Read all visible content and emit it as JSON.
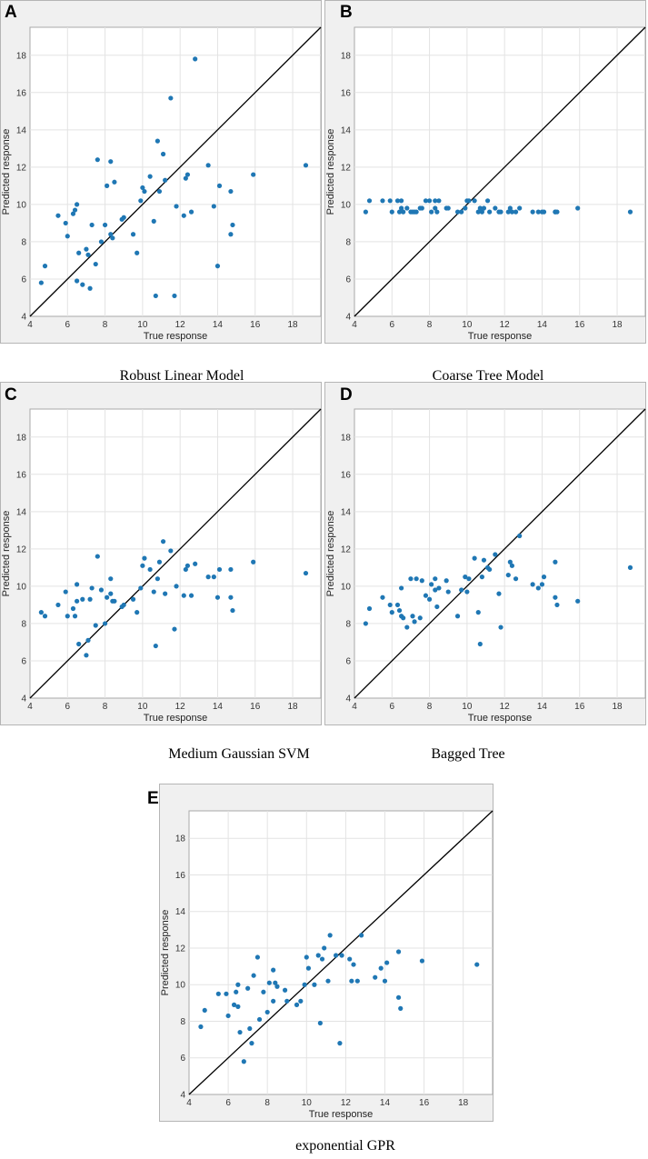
{
  "chart_data": [
    {
      "type": "scatter",
      "panel": "A",
      "caption": "Robust Linear Model",
      "xlabel": "True response",
      "ylabel": "Predicted response",
      "xlim": [
        4,
        19.5
      ],
      "ylim": [
        4,
        19.5
      ],
      "xticks": [
        4,
        6,
        8,
        10,
        12,
        14,
        16,
        18
      ],
      "yticks": [
        4,
        6,
        8,
        10,
        12,
        14,
        16,
        18
      ],
      "grid": true,
      "reference_line": "y = x",
      "points": [
        [
          4.6,
          5.8
        ],
        [
          4.8,
          6.7
        ],
        [
          5.5,
          9.4
        ],
        [
          5.9,
          9.0
        ],
        [
          6.0,
          8.3
        ],
        [
          6.3,
          9.5
        ],
        [
          6.4,
          9.7
        ],
        [
          6.5,
          10.0
        ],
        [
          6.5,
          5.9
        ],
        [
          6.6,
          7.4
        ],
        [
          6.8,
          5.7
        ],
        [
          7.0,
          7.6
        ],
        [
          7.1,
          7.3
        ],
        [
          7.2,
          5.5
        ],
        [
          7.3,
          8.9
        ],
        [
          7.5,
          6.8
        ],
        [
          7.6,
          12.4
        ],
        [
          7.8,
          8.0
        ],
        [
          8.0,
          8.9
        ],
        [
          8.1,
          11.0
        ],
        [
          8.3,
          12.3
        ],
        [
          8.3,
          8.4
        ],
        [
          8.4,
          8.2
        ],
        [
          8.5,
          11.2
        ],
        [
          8.9,
          9.2
        ],
        [
          9.0,
          9.3
        ],
        [
          9.5,
          8.4
        ],
        [
          9.7,
          7.4
        ],
        [
          9.9,
          10.2
        ],
        [
          10.0,
          10.9
        ],
        [
          10.1,
          10.7
        ],
        [
          10.4,
          11.5
        ],
        [
          10.6,
          9.1
        ],
        [
          10.7,
          5.1
        ],
        [
          10.8,
          13.4
        ],
        [
          10.9,
          10.7
        ],
        [
          11.1,
          12.7
        ],
        [
          11.2,
          11.3
        ],
        [
          11.5,
          15.7
        ],
        [
          11.7,
          5.1
        ],
        [
          11.8,
          9.9
        ],
        [
          12.2,
          9.4
        ],
        [
          12.3,
          11.4
        ],
        [
          12.4,
          11.6
        ],
        [
          12.6,
          9.6
        ],
        [
          12.8,
          17.8
        ],
        [
          13.5,
          12.1
        ],
        [
          13.8,
          9.9
        ],
        [
          14.0,
          6.7
        ],
        [
          14.1,
          11.0
        ],
        [
          14.7,
          10.7
        ],
        [
          14.7,
          8.4
        ],
        [
          14.8,
          8.9
        ],
        [
          15.9,
          11.6
        ],
        [
          18.7,
          12.1
        ]
      ]
    },
    {
      "type": "scatter",
      "panel": "B",
      "caption": "Coarse Tree Model",
      "xlabel": "True response",
      "ylabel": "Predicted response",
      "xlim": [
        4,
        19.5
      ],
      "ylim": [
        4,
        19.5
      ],
      "xticks": [
        4,
        6,
        8,
        10,
        12,
        14,
        16,
        18
      ],
      "yticks": [
        4,
        6,
        8,
        10,
        12,
        14,
        16,
        18
      ],
      "grid": true,
      "reference_line": "y = x",
      "points": [
        [
          4.6,
          9.6
        ],
        [
          4.8,
          10.2
        ],
        [
          5.5,
          10.2
        ],
        [
          5.9,
          10.2
        ],
        [
          6.0,
          9.6
        ],
        [
          6.3,
          10.2
        ],
        [
          6.4,
          9.6
        ],
        [
          6.5,
          10.2
        ],
        [
          6.5,
          9.8
        ],
        [
          6.6,
          9.6
        ],
        [
          6.8,
          9.8
        ],
        [
          7.0,
          9.6
        ],
        [
          7.1,
          9.6
        ],
        [
          7.2,
          9.6
        ],
        [
          7.3,
          9.6
        ],
        [
          7.5,
          9.8
        ],
        [
          7.6,
          9.8
        ],
        [
          7.8,
          10.2
        ],
        [
          8.0,
          10.2
        ],
        [
          8.1,
          9.6
        ],
        [
          8.3,
          10.2
        ],
        [
          8.3,
          9.8
        ],
        [
          8.4,
          9.6
        ],
        [
          8.5,
          10.2
        ],
        [
          8.9,
          9.8
        ],
        [
          9.0,
          9.8
        ],
        [
          9.5,
          9.6
        ],
        [
          9.7,
          9.6
        ],
        [
          9.9,
          9.8
        ],
        [
          10.0,
          10.2
        ],
        [
          10.1,
          10.2
        ],
        [
          10.4,
          10.2
        ],
        [
          10.6,
          9.6
        ],
        [
          10.7,
          9.8
        ],
        [
          10.8,
          9.6
        ],
        [
          10.9,
          9.8
        ],
        [
          11.1,
          10.2
        ],
        [
          11.2,
          9.6
        ],
        [
          11.5,
          9.8
        ],
        [
          11.7,
          9.6
        ],
        [
          11.8,
          9.6
        ],
        [
          12.2,
          9.6
        ],
        [
          12.3,
          9.8
        ],
        [
          12.4,
          9.6
        ],
        [
          12.6,
          9.6
        ],
        [
          12.8,
          9.8
        ],
        [
          13.5,
          9.6
        ],
        [
          13.8,
          9.6
        ],
        [
          14.0,
          9.6
        ],
        [
          14.1,
          9.6
        ],
        [
          14.7,
          9.6
        ],
        [
          14.7,
          9.6
        ],
        [
          14.8,
          9.6
        ],
        [
          15.9,
          9.8
        ],
        [
          18.7,
          9.6
        ]
      ]
    },
    {
      "type": "scatter",
      "panel": "C",
      "caption": "Medium Gaussian SVM",
      "xlabel": "True response",
      "ylabel": "Predicted response",
      "xlim": [
        4,
        19.5
      ],
      "ylim": [
        4,
        19.5
      ],
      "xticks": [
        4,
        6,
        8,
        10,
        12,
        14,
        16,
        18
      ],
      "yticks": [
        4,
        6,
        8,
        10,
        12,
        14,
        16,
        18
      ],
      "grid": true,
      "reference_line": "y = x",
      "points": [
        [
          4.6,
          8.6
        ],
        [
          4.8,
          8.4
        ],
        [
          5.5,
          9.0
        ],
        [
          5.9,
          9.7
        ],
        [
          6.0,
          8.4
        ],
        [
          6.3,
          8.8
        ],
        [
          6.4,
          8.4
        ],
        [
          6.5,
          10.1
        ],
        [
          6.5,
          9.2
        ],
        [
          6.6,
          6.9
        ],
        [
          6.8,
          9.3
        ],
        [
          7.0,
          6.3
        ],
        [
          7.1,
          7.1
        ],
        [
          7.2,
          9.3
        ],
        [
          7.3,
          9.9
        ],
        [
          7.5,
          7.9
        ],
        [
          7.6,
          11.6
        ],
        [
          7.8,
          9.8
        ],
        [
          8.0,
          8.0
        ],
        [
          8.1,
          9.4
        ],
        [
          8.3,
          10.4
        ],
        [
          8.3,
          9.6
        ],
        [
          8.4,
          9.2
        ],
        [
          8.5,
          9.2
        ],
        [
          8.9,
          8.9
        ],
        [
          9.0,
          9.0
        ],
        [
          9.5,
          9.3
        ],
        [
          9.7,
          8.6
        ],
        [
          9.9,
          9.9
        ],
        [
          10.0,
          11.1
        ],
        [
          10.1,
          11.5
        ],
        [
          10.4,
          10.9
        ],
        [
          10.6,
          9.7
        ],
        [
          10.7,
          6.8
        ],
        [
          10.8,
          10.4
        ],
        [
          10.9,
          11.3
        ],
        [
          11.1,
          12.4
        ],
        [
          11.2,
          9.6
        ],
        [
          11.5,
          11.9
        ],
        [
          11.7,
          7.7
        ],
        [
          11.8,
          10.0
        ],
        [
          12.2,
          9.5
        ],
        [
          12.3,
          10.9
        ],
        [
          12.4,
          11.1
        ],
        [
          12.6,
          9.5
        ],
        [
          12.8,
          11.2
        ],
        [
          13.5,
          10.5
        ],
        [
          13.8,
          10.5
        ],
        [
          14.0,
          9.4
        ],
        [
          14.1,
          10.9
        ],
        [
          14.7,
          10.9
        ],
        [
          14.7,
          9.4
        ],
        [
          14.8,
          8.7
        ],
        [
          15.9,
          11.3
        ],
        [
          18.7,
          10.7
        ]
      ]
    },
    {
      "type": "scatter",
      "panel": "D",
      "caption": "Bagged Tree",
      "xlabel": "True response",
      "ylabel": "Predicted response",
      "xlim": [
        4,
        19.5
      ],
      "ylim": [
        4,
        19.5
      ],
      "xticks": [
        4,
        6,
        8,
        10,
        12,
        14,
        16,
        18
      ],
      "yticks": [
        4,
        6,
        8,
        10,
        12,
        14,
        16,
        18
      ],
      "grid": true,
      "reference_line": "y = x",
      "points": [
        [
          4.6,
          8.0
        ],
        [
          4.8,
          8.8
        ],
        [
          5.5,
          9.4
        ],
        [
          5.9,
          9.0
        ],
        [
          6.0,
          8.6
        ],
        [
          6.3,
          9.0
        ],
        [
          6.4,
          8.7
        ],
        [
          6.5,
          9.9
        ],
        [
          6.5,
          8.4
        ],
        [
          6.6,
          8.3
        ],
        [
          6.8,
          7.8
        ],
        [
          7.0,
          10.4
        ],
        [
          7.1,
          8.4
        ],
        [
          7.2,
          8.1
        ],
        [
          7.3,
          10.4
        ],
        [
          7.5,
          8.3
        ],
        [
          7.6,
          10.3
        ],
        [
          7.8,
          9.5
        ],
        [
          8.0,
          9.3
        ],
        [
          8.1,
          10.1
        ],
        [
          8.3,
          10.4
        ],
        [
          8.3,
          9.8
        ],
        [
          8.4,
          8.9
        ],
        [
          8.5,
          9.9
        ],
        [
          8.9,
          10.3
        ],
        [
          9.0,
          9.7
        ],
        [
          9.5,
          8.4
        ],
        [
          9.7,
          9.8
        ],
        [
          9.9,
          10.5
        ],
        [
          10.0,
          9.7
        ],
        [
          10.1,
          10.4
        ],
        [
          10.4,
          11.5
        ],
        [
          10.6,
          8.6
        ],
        [
          10.7,
          6.9
        ],
        [
          10.8,
          10.5
        ],
        [
          10.9,
          11.4
        ],
        [
          11.1,
          11.0
        ],
        [
          11.2,
          10.9
        ],
        [
          11.5,
          11.7
        ],
        [
          11.7,
          9.6
        ],
        [
          11.8,
          7.8
        ],
        [
          12.2,
          10.6
        ],
        [
          12.3,
          11.3
        ],
        [
          12.4,
          11.1
        ],
        [
          12.6,
          10.4
        ],
        [
          12.8,
          12.7
        ],
        [
          13.5,
          10.1
        ],
        [
          13.8,
          9.9
        ],
        [
          14.0,
          10.1
        ],
        [
          14.1,
          10.5
        ],
        [
          14.7,
          11.3
        ],
        [
          14.7,
          9.4
        ],
        [
          14.8,
          9.0
        ],
        [
          15.9,
          9.2
        ],
        [
          18.7,
          11.0
        ]
      ]
    },
    {
      "type": "scatter",
      "panel": "E",
      "caption": "exponential GPR",
      "xlabel": "True response",
      "ylabel": "Predicted response",
      "xlim": [
        4,
        19.5
      ],
      "ylim": [
        4,
        19.5
      ],
      "xticks": [
        4,
        6,
        8,
        10,
        12,
        14,
        16,
        18
      ],
      "yticks": [
        4,
        6,
        8,
        10,
        12,
        14,
        16,
        18
      ],
      "grid": true,
      "reference_line": "y = x",
      "points": [
        [
          4.6,
          7.7
        ],
        [
          4.8,
          8.6
        ],
        [
          5.5,
          9.5
        ],
        [
          5.9,
          9.5
        ],
        [
          6.0,
          8.3
        ],
        [
          6.3,
          8.9
        ],
        [
          6.4,
          9.6
        ],
        [
          6.5,
          8.8
        ],
        [
          6.5,
          10.0
        ],
        [
          6.6,
          7.4
        ],
        [
          6.8,
          5.8
        ],
        [
          7.0,
          9.8
        ],
        [
          7.1,
          7.6
        ],
        [
          7.2,
          6.8
        ],
        [
          7.3,
          10.5
        ],
        [
          7.5,
          11.5
        ],
        [
          7.6,
          8.1
        ],
        [
          7.8,
          9.6
        ],
        [
          8.0,
          8.5
        ],
        [
          8.1,
          10.1
        ],
        [
          8.3,
          10.8
        ],
        [
          8.3,
          9.1
        ],
        [
          8.4,
          10.1
        ],
        [
          8.5,
          9.9
        ],
        [
          8.9,
          9.7
        ],
        [
          9.0,
          9.1
        ],
        [
          9.5,
          8.9
        ],
        [
          9.7,
          9.1
        ],
        [
          9.9,
          10.0
        ],
        [
          10.0,
          11.5
        ],
        [
          10.1,
          10.9
        ],
        [
          10.4,
          10.0
        ],
        [
          10.6,
          11.6
        ],
        [
          10.7,
          7.9
        ],
        [
          10.8,
          11.4
        ],
        [
          10.9,
          12.0
        ],
        [
          11.1,
          10.2
        ],
        [
          11.2,
          12.7
        ],
        [
          11.5,
          11.6
        ],
        [
          11.7,
          6.8
        ],
        [
          11.8,
          11.6
        ],
        [
          12.2,
          11.4
        ],
        [
          12.3,
          10.2
        ],
        [
          12.4,
          11.1
        ],
        [
          12.6,
          10.2
        ],
        [
          12.8,
          12.7
        ],
        [
          13.5,
          10.4
        ],
        [
          13.8,
          10.9
        ],
        [
          14.0,
          10.2
        ],
        [
          14.1,
          11.2
        ],
        [
          14.7,
          11.8
        ],
        [
          14.7,
          9.3
        ],
        [
          14.8,
          8.7
        ],
        [
          15.9,
          11.3
        ],
        [
          18.7,
          11.1
        ]
      ]
    }
  ]
}
